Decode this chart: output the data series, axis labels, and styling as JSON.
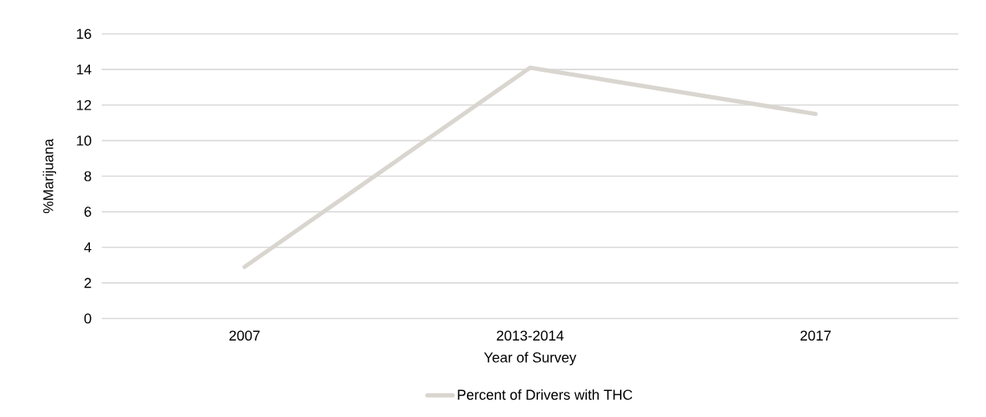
{
  "chart_data": {
    "type": "line",
    "xlabel": "Year of Survey",
    "ylabel": "%Marijuana",
    "categories": [
      "2007",
      "2013-2014",
      "2017"
    ],
    "series": [
      {
        "name": "Percent of Drivers with THC",
        "color": "#d9d5cf",
        "values": [
          2.9,
          14.1,
          11.5
        ]
      }
    ],
    "ylim": [
      0,
      16
    ],
    "yticks": [
      0,
      2,
      4,
      6,
      8,
      10,
      12,
      14,
      16
    ],
    "grid": "y",
    "legend": "bottom",
    "marker": "none",
    "line_style": "solid"
  }
}
